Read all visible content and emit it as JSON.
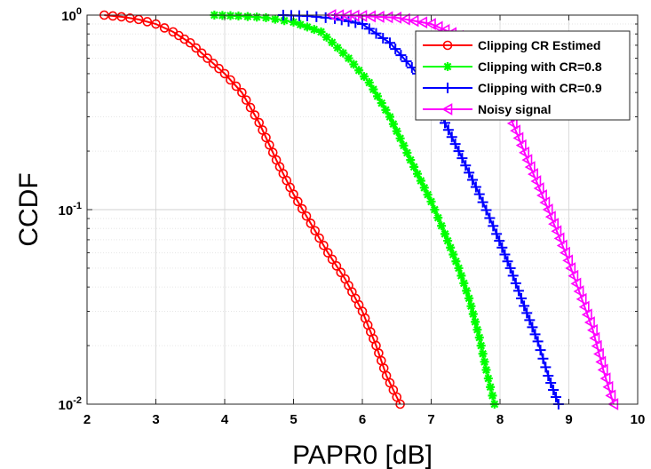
{
  "chart_data": {
    "type": "line",
    "title": "",
    "xlabel": "PAPR0 [dB]",
    "ylabel": "CCDF",
    "xlim": [
      2,
      10
    ],
    "ylim": [
      0.01,
      1
    ],
    "yscale": "log",
    "grid": true,
    "legend_position": "top-right",
    "x_ticks": [
      "2",
      "3",
      "4",
      "5",
      "6",
      "7",
      "8",
      "9",
      "10"
    ],
    "y_ticks": [
      {
        "value": 1,
        "base": "10",
        "exp": "0"
      },
      {
        "value": 0.1,
        "base": "10",
        "exp": "-1"
      },
      {
        "value": 0.01,
        "base": "10",
        "exp": "-2"
      }
    ],
    "series": [
      {
        "name": "Clipping CR Estimed",
        "color": "#ff0000",
        "marker": "circle",
        "x": [
          2.25,
          2.5,
          2.75,
          3.0,
          3.25,
          3.5,
          3.75,
          4.0,
          4.25,
          4.5,
          4.75,
          5.0,
          5.25,
          5.5,
          5.75,
          6.0,
          6.2,
          6.35,
          6.55
        ],
        "y": [
          1.0,
          0.98,
          0.95,
          0.9,
          0.82,
          0.72,
          0.6,
          0.5,
          0.4,
          0.28,
          0.18,
          0.12,
          0.085,
          0.06,
          0.044,
          0.03,
          0.02,
          0.014,
          0.01
        ]
      },
      {
        "name": "Clipping with CR=0.8",
        "color": "#00ff00",
        "marker": "star",
        "x": [
          3.85,
          4.2,
          4.6,
          5.0,
          5.4,
          5.8,
          6.1,
          6.4,
          6.7,
          7.0,
          7.2,
          7.4,
          7.55,
          7.7,
          7.8,
          7.92
        ],
        "y": [
          1.0,
          0.99,
          0.97,
          0.92,
          0.82,
          0.6,
          0.45,
          0.3,
          0.18,
          0.11,
          0.075,
          0.05,
          0.035,
          0.022,
          0.015,
          0.01
        ]
      },
      {
        "name": "Clipping with CR=0.9",
        "color": "#0000ff",
        "marker": "plus",
        "x": [
          4.85,
          5.2,
          5.6,
          6.0,
          6.4,
          6.8,
          7.1,
          7.4,
          7.7,
          7.95,
          8.15,
          8.35,
          8.55,
          8.7,
          8.85
        ],
        "y": [
          1.0,
          0.99,
          0.96,
          0.9,
          0.72,
          0.5,
          0.33,
          0.2,
          0.12,
          0.075,
          0.05,
          0.032,
          0.021,
          0.014,
          0.01
        ]
      },
      {
        "name": "Noisy signal",
        "color": "#ff00ff",
        "marker": "triangle-left",
        "x": [
          5.55,
          6.0,
          6.5,
          7.0,
          7.4,
          7.8,
          8.1,
          8.4,
          8.7,
          8.95,
          9.15,
          9.35,
          9.5,
          9.65
        ],
        "y": [
          1.0,
          0.99,
          0.97,
          0.9,
          0.78,
          0.55,
          0.33,
          0.18,
          0.1,
          0.06,
          0.038,
          0.024,
          0.015,
          0.01
        ]
      }
    ]
  }
}
